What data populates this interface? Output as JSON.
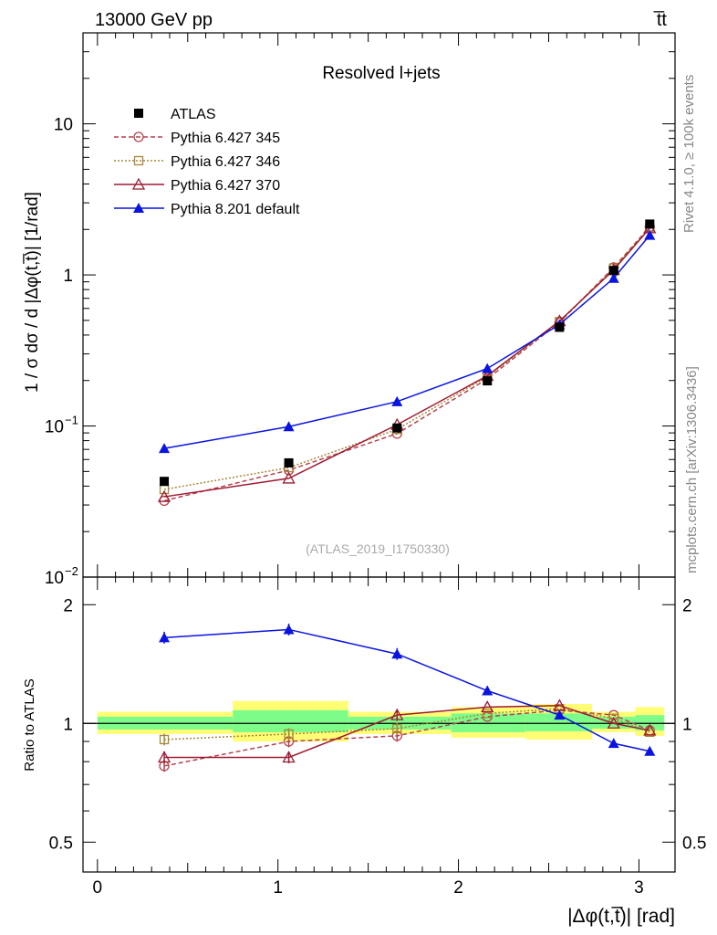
{
  "header": {
    "left": "13000 GeV pp",
    "right": "t̅t"
  },
  "side": {
    "rivet": "Rivet 4.1.0, ≥ 100k events",
    "mcplots": "mcplots.cern.ch [arXiv:1306.3436]"
  },
  "colors": {
    "atlas": "#000000",
    "py345": "#b5434e",
    "py346": "#a88738",
    "py370": "#9e1b32",
    "py8": "#0a14e0",
    "band_inner": "#7dfc8a",
    "band_outer": "#fffd74"
  },
  "chart_data": [
    {
      "type": "line",
      "panel": "main",
      "title": "Resolved l+jets",
      "watermark": "(ATLAS_2019_I1750330)",
      "ylabel": "1 / σ dσ / d |Δφ(t,t̅)| [1/rad]",
      "yscale": "log",
      "ylim": [
        0.01,
        40
      ],
      "xlim": [
        -0.08,
        3.2
      ],
      "y_ticks": [
        {
          "v": 10,
          "label": "10"
        },
        {
          "v": 1,
          "label": "1"
        },
        {
          "v": 0.1,
          "label": "10",
          "sup": "−1"
        },
        {
          "v": 0.01,
          "label": "10",
          "sup": "−2"
        }
      ],
      "legend_position": "top-left",
      "x": [
        0.37,
        1.06,
        1.66,
        2.16,
        2.56,
        2.86,
        3.06
      ],
      "series": [
        {
          "name": "ATLAS",
          "key": "atlas",
          "values": [
            0.043,
            0.057,
            0.097,
            0.199,
            0.45,
            1.07,
            2.17
          ]
        },
        {
          "name": "Pythia 6.427 345",
          "key": "py345",
          "values": [
            0.032,
            0.051,
            0.089,
            0.205,
            0.485,
            1.12,
            2.08
          ]
        },
        {
          "name": "Pythia 6.427 346",
          "key": "py346",
          "values": [
            0.038,
            0.053,
            0.095,
            0.212,
            0.49,
            1.11,
            2.06
          ]
        },
        {
          "name": "Pythia 6.427 370",
          "key": "py370",
          "values": [
            0.034,
            0.045,
            0.102,
            0.215,
            0.495,
            1.08,
            2.04
          ]
        },
        {
          "name": "Pythia 8.201 default",
          "key": "py8",
          "values": [
            0.071,
            0.099,
            0.145,
            0.24,
            0.47,
            0.95,
            1.83
          ]
        }
      ]
    },
    {
      "type": "line",
      "panel": "ratio",
      "ylabel": "Ratio to ATLAS",
      "xlabel": "|Δφ(t,t̅)| [rad]",
      "yscale": "log",
      "ylim": [
        0.42,
        2.35
      ],
      "xlim": [
        -0.08,
        3.2
      ],
      "x_ticks": [
        0,
        1,
        2,
        3
      ],
      "y_ticks": [
        {
          "v": 2,
          "label": "2"
        },
        {
          "v": 1,
          "label": "1"
        },
        {
          "v": 0.5,
          "label": "0.5"
        }
      ],
      "x": [
        0.37,
        1.06,
        1.66,
        2.16,
        2.56,
        2.86,
        3.06
      ],
      "bins": [
        0,
        0.75,
        1.39,
        1.96,
        2.37,
        2.74,
        2.98,
        3.14
      ],
      "band_inner": [
        [
          0.965,
          1.04
        ],
        [
          0.95,
          1.08
        ],
        [
          0.965,
          1.04
        ],
        [
          0.95,
          1.06
        ],
        [
          0.955,
          1.06
        ],
        [
          0.97,
          1.04
        ],
        [
          0.96,
          1.05
        ]
      ],
      "band_outer": [
        [
          0.94,
          1.07
        ],
        [
          0.9,
          1.14
        ],
        [
          0.94,
          1.07
        ],
        [
          0.92,
          1.1
        ],
        [
          0.91,
          1.12
        ],
        [
          0.95,
          1.07
        ],
        [
          0.93,
          1.1
        ]
      ],
      "series": [
        {
          "name": "Pythia 6.427 345",
          "key": "py345",
          "values": [
            0.78,
            0.9,
            0.93,
            1.04,
            1.08,
            1.05,
            0.96
          ]
        },
        {
          "name": "Pythia 6.427 346",
          "key": "py346",
          "values": [
            0.91,
            0.94,
            0.97,
            1.06,
            1.09,
            1.03,
            0.95
          ]
        },
        {
          "name": "Pythia 6.427 370",
          "key": "py370",
          "values": [
            0.82,
            0.82,
            1.05,
            1.1,
            1.11,
            1.0,
            0.96
          ]
        },
        {
          "name": "Pythia 8.201 default",
          "key": "py8",
          "values": [
            1.65,
            1.73,
            1.5,
            1.21,
            1.05,
            0.89,
            0.85
          ]
        }
      ]
    }
  ]
}
